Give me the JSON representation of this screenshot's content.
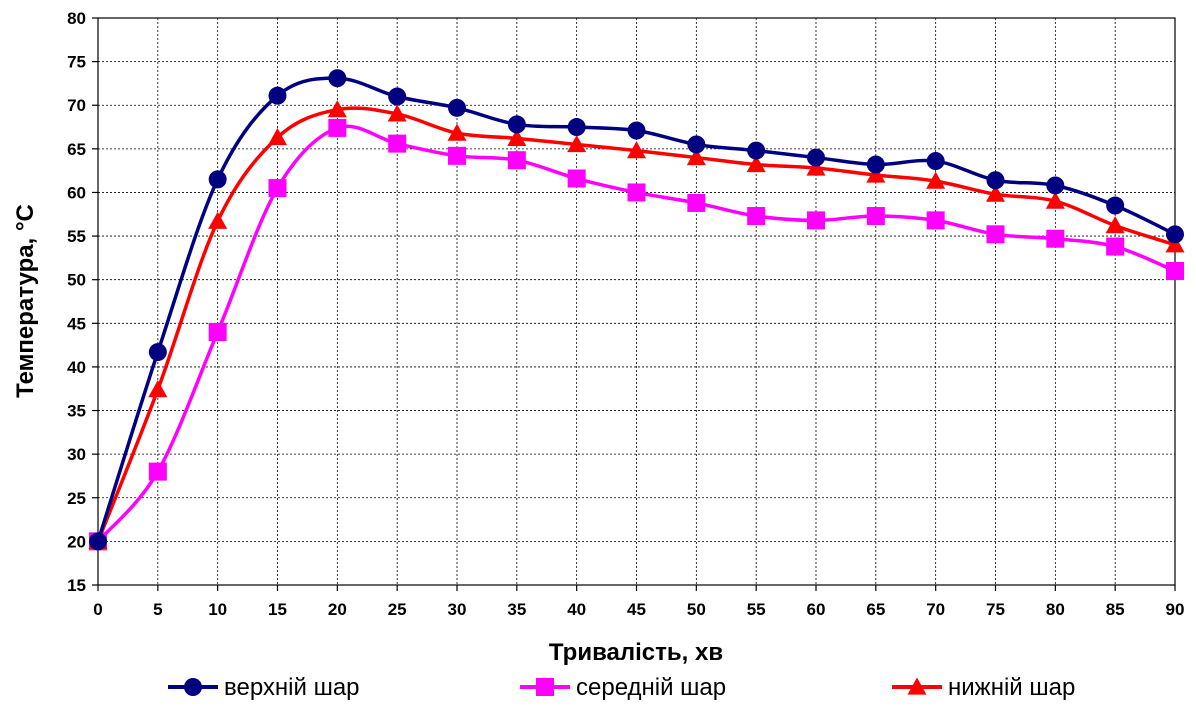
{
  "chart_data": {
    "type": "line",
    "xlabel": "Тривалість, хв",
    "ylabel": "Температура, °С",
    "xlim": [
      0,
      90
    ],
    "ylim": [
      15,
      80
    ],
    "xticks": [
      0,
      5,
      10,
      15,
      20,
      25,
      30,
      35,
      40,
      45,
      50,
      55,
      60,
      65,
      70,
      75,
      80,
      85,
      90
    ],
    "yticks": [
      15,
      20,
      25,
      30,
      35,
      40,
      45,
      50,
      55,
      60,
      65,
      70,
      75,
      80
    ],
    "grid": true,
    "smooth": true,
    "legend_position": "bottom",
    "x": [
      0,
      5,
      10,
      15,
      20,
      25,
      30,
      35,
      40,
      45,
      50,
      55,
      60,
      65,
      70,
      75,
      80,
      85,
      90
    ],
    "series": [
      {
        "name": "верхній шар",
        "color": "#000080",
        "marker": "circle",
        "values": [
          20.0,
          41.7,
          61.5,
          71.1,
          73.1,
          71.0,
          69.7,
          67.8,
          67.5,
          67.1,
          65.5,
          64.8,
          64.0,
          63.2,
          63.6,
          61.4,
          60.8,
          58.5,
          55.2
        ]
      },
      {
        "name": "середній шар",
        "color": "#FF00FF",
        "marker": "square",
        "values": [
          20.0,
          28.0,
          44.0,
          60.5,
          67.4,
          65.6,
          64.2,
          63.7,
          61.6,
          60.0,
          58.8,
          57.3,
          56.8,
          57.3,
          56.8,
          55.2,
          54.7,
          53.8,
          51.0
        ]
      },
      {
        "name": "нижній шар",
        "color": "#FF0000",
        "marker": "triangle",
        "values": [
          20.0,
          37.4,
          56.7,
          66.3,
          69.5,
          69.0,
          66.8,
          66.2,
          65.5,
          64.8,
          64.0,
          63.2,
          62.8,
          62.0,
          61.3,
          59.8,
          59.0,
          56.2,
          54.0
        ]
      }
    ]
  }
}
